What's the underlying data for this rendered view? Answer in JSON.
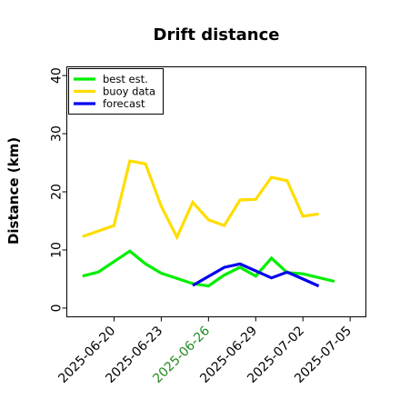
{
  "chart_data": {
    "type": "line",
    "title": "Drift distance",
    "xlabel": "",
    "ylabel": "Distance (km)",
    "ylim": [
      -1.5,
      41.5
    ],
    "yticks": [
      0,
      10,
      20,
      30,
      40
    ],
    "xlim": [
      "2025-06-17",
      "2025-07-06"
    ],
    "xticks": [
      {
        "date": "2025-06-20",
        "label": "2025-06-20",
        "color": "#000000"
      },
      {
        "date": "2025-06-23",
        "label": "2025-06-23",
        "color": "#000000"
      },
      {
        "date": "2025-06-26",
        "label": "2025-06-26",
        "color": "#228B22"
      },
      {
        "date": "2025-06-29",
        "label": "2025-06-29",
        "color": "#000000"
      },
      {
        "date": "2025-07-02",
        "label": "2025-07-02",
        "color": "#000000"
      },
      {
        "date": "2025-07-05",
        "label": "2025-07-05",
        "color": "#000000"
      }
    ],
    "grid": false,
    "legend_position": "top-left",
    "series": [
      {
        "name": "best est.",
        "color": "#00ee00",
        "points": [
          [
            "2025-06-18",
            5.5
          ],
          [
            "2025-06-19",
            6.2
          ],
          [
            "2025-06-21",
            9.8
          ],
          [
            "2025-06-22",
            7.6
          ],
          [
            "2025-06-23",
            6.0
          ],
          [
            "2025-06-25",
            4.2
          ],
          [
            "2025-06-26",
            3.8
          ],
          [
            "2025-06-27",
            5.7
          ],
          [
            "2025-06-28",
            7.0
          ],
          [
            "2025-06-29",
            5.5
          ],
          [
            "2025-06-30",
            8.6
          ],
          [
            "2025-07-01",
            6.1
          ],
          [
            "2025-07-02",
            5.9
          ],
          [
            "2025-07-04",
            4.6
          ]
        ]
      },
      {
        "name": "buoy data",
        "color": "#ffdd00",
        "points": [
          [
            "2025-06-18",
            12.3
          ],
          [
            "2025-06-20",
            14.2
          ],
          [
            "2025-06-21",
            25.3
          ],
          [
            "2025-06-22",
            24.8
          ],
          [
            "2025-06-23",
            17.5
          ],
          [
            "2025-06-24",
            12.2
          ],
          [
            "2025-06-25",
            18.2
          ],
          [
            "2025-06-26",
            15.2
          ],
          [
            "2025-06-27",
            14.2
          ],
          [
            "2025-06-28",
            18.6
          ],
          [
            "2025-06-29",
            18.7
          ],
          [
            "2025-06-30",
            22.5
          ],
          [
            "2025-07-01",
            21.9
          ],
          [
            "2025-07-02",
            15.8
          ],
          [
            "2025-07-03",
            16.2
          ]
        ]
      },
      {
        "name": "forecast",
        "color": "#0000ee",
        "points": [
          [
            "2025-06-25",
            3.9
          ],
          [
            "2025-06-27",
            7.0
          ],
          [
            "2025-06-28",
            7.6
          ],
          [
            "2025-06-30",
            5.2
          ],
          [
            "2025-07-01",
            6.2
          ],
          [
            "2025-07-02",
            5.0
          ],
          [
            "2025-07-03",
            3.8
          ]
        ]
      }
    ]
  }
}
